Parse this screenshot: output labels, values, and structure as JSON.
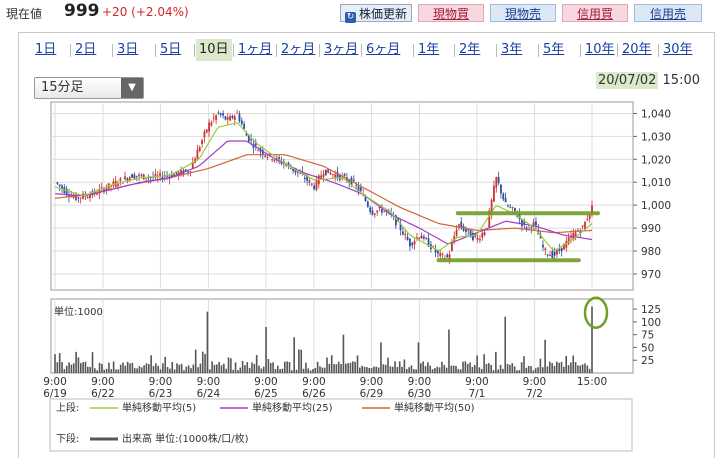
{
  "header": {
    "label": "現在値",
    "price": "999",
    "change": "+20 (+2.04%)",
    "buttons": [
      {
        "label": "株価更新",
        "style": "refresh",
        "x": 340,
        "w": 72
      },
      {
        "label": "現物買",
        "style": "pink",
        "x": 418,
        "w": 66
      },
      {
        "label": "現物売",
        "style": "blue",
        "x": 490,
        "w": 66
      },
      {
        "label": "信用買",
        "style": "pink",
        "x": 562,
        "w": 66
      },
      {
        "label": "信用売",
        "style": "blue",
        "x": 634,
        "w": 68
      }
    ]
  },
  "tabs": [
    {
      "label": "1日"
    },
    {
      "label": "2日"
    },
    {
      "label": "3日"
    },
    {
      "label": "5日"
    },
    {
      "label": "10日",
      "active": true
    },
    {
      "label": "1ヶ月"
    },
    {
      "label": "2ヶ月"
    },
    {
      "label": "3ヶ月"
    },
    {
      "label": "6ヶ月"
    },
    {
      "label": "1年"
    },
    {
      "label": "2年"
    },
    {
      "label": "3年"
    },
    {
      "label": "5年"
    },
    {
      "label": "10年"
    },
    {
      "label": "20年"
    },
    {
      "label": "30年"
    }
  ],
  "interval_select": {
    "value": "15分足"
  },
  "datetime": {
    "date": "20/07/02",
    "time": "15:00"
  },
  "colors": {
    "ma5": "#9ccb3c",
    "ma25": "#a03cc8",
    "ma50": "#d4633c",
    "up": "#d03030",
    "down": "#2a4fa0",
    "volume": "#555555",
    "annotation": "#6f9e2a"
  },
  "chart_data": [
    {
      "type": "candlestick",
      "name": "price",
      "ylim": [
        963,
        1045
      ],
      "yticks": [
        970,
        980,
        990,
        1000,
        1010,
        1020,
        1030,
        1040
      ],
      "x_ticks": [
        {
          "time": "9:00",
          "date": "6/19"
        },
        {
          "time": "9:00",
          "date": "6/22"
        },
        {
          "time": "9:00",
          "date": "6/23"
        },
        {
          "time": "9:00",
          "date": "6/24"
        },
        {
          "time": "9:00",
          "date": "6/25"
        },
        {
          "time": "9:00",
          "date": "6/26"
        },
        {
          "time": "9:00",
          "date": "6/29"
        },
        {
          "time": "9:00",
          "date": "6/30"
        },
        {
          "time": "9:00",
          "date": "7/1"
        },
        {
          "time": "9:00",
          "date": "7/2"
        },
        {
          "time": "15:00",
          "date": ""
        }
      ],
      "path_keypoints": [
        [
          0,
          1010
        ],
        [
          2,
          1003
        ],
        [
          4,
          1005
        ],
        [
          6,
          1009
        ],
        [
          8,
          1013
        ],
        [
          10,
          1012
        ],
        [
          12,
          1013
        ],
        [
          14,
          1015
        ],
        [
          16,
          1035
        ],
        [
          17,
          1040
        ],
        [
          18,
          1037
        ],
        [
          19,
          1040
        ],
        [
          20,
          1030
        ],
        [
          21,
          1025
        ],
        [
          22,
          1022
        ],
        [
          24,
          1018
        ],
        [
          26,
          1012
        ],
        [
          27,
          1008
        ],
        [
          28,
          1015
        ],
        [
          30,
          1012
        ],
        [
          31,
          1010
        ],
        [
          32,
          1005
        ],
        [
          33,
          997
        ],
        [
          34,
          998
        ],
        [
          35,
          996
        ],
        [
          36,
          990
        ],
        [
          37,
          983
        ],
        [
          38,
          987
        ],
        [
          39,
          983
        ],
        [
          40,
          978
        ],
        [
          41,
          977
        ],
        [
          42,
          992
        ],
        [
          43,
          988
        ],
        [
          44,
          985
        ],
        [
          45,
          990
        ],
        [
          46,
          1012
        ],
        [
          47,
          1000
        ],
        [
          48,
          997
        ],
        [
          49,
          990
        ],
        [
          50,
          992
        ],
        [
          51,
          980
        ],
        [
          52,
          978
        ],
        [
          53,
          982
        ],
        [
          54,
          987
        ],
        [
          55,
          990
        ],
        [
          56,
          999
        ]
      ],
      "ma_keypoints": {
        "ma5": [
          [
            0,
            1008
          ],
          [
            3,
            1004
          ],
          [
            6,
            1009
          ],
          [
            9,
            1012
          ],
          [
            12,
            1013
          ],
          [
            15,
            1020
          ],
          [
            17,
            1034
          ],
          [
            19,
            1036
          ],
          [
            21,
            1027
          ],
          [
            24,
            1018
          ],
          [
            27,
            1011
          ],
          [
            30,
            1012
          ],
          [
            32,
            1005
          ],
          [
            35,
            997
          ],
          [
            37,
            987
          ],
          [
            40,
            980
          ],
          [
            42,
            986
          ],
          [
            44,
            987
          ],
          [
            46,
            1000
          ],
          [
            48,
            996
          ],
          [
            50,
            990
          ],
          [
            52,
            980
          ],
          [
            54,
            985
          ],
          [
            56,
            992
          ]
        ],
        "ma25": [
          [
            0,
            1005
          ],
          [
            3,
            1004
          ],
          [
            6,
            1007
          ],
          [
            9,
            1010
          ],
          [
            12,
            1012
          ],
          [
            15,
            1017
          ],
          [
            18,
            1028
          ],
          [
            20,
            1028
          ],
          [
            23,
            1020
          ],
          [
            26,
            1014
          ],
          [
            29,
            1010
          ],
          [
            32,
            1005
          ],
          [
            35,
            996
          ],
          [
            38,
            990
          ],
          [
            41,
            983
          ],
          [
            44,
            988
          ],
          [
            47,
            993
          ],
          [
            50,
            991
          ],
          [
            53,
            987
          ],
          [
            56,
            985
          ]
        ],
        "ma50": [
          [
            0,
            1003
          ],
          [
            4,
            1005
          ],
          [
            8,
            1009
          ],
          [
            12,
            1012
          ],
          [
            16,
            1016
          ],
          [
            20,
            1022
          ],
          [
            24,
            1022
          ],
          [
            28,
            1017
          ],
          [
            32,
            1008
          ],
          [
            36,
            999
          ],
          [
            40,
            992
          ],
          [
            44,
            989
          ],
          [
            48,
            990
          ],
          [
            52,
            988
          ],
          [
            56,
            989
          ]
        ]
      },
      "support_lines": [
        {
          "from": [
            42,
            996.5
          ],
          "to": [
            56,
            996.5
          ]
        },
        {
          "from": [
            40,
            976
          ],
          "to": [
            54,
            976
          ]
        }
      ]
    },
    {
      "type": "bar",
      "name": "volume",
      "unit_label": "単位:1000",
      "ylim": [
        0,
        135
      ],
      "yticks": [
        25,
        50,
        75,
        100,
        125
      ],
      "spikes": [
        [
          16,
          120
        ],
        [
          22,
          90
        ],
        [
          25,
          70
        ],
        [
          30,
          75
        ],
        [
          34,
          60
        ],
        [
          38,
          60
        ],
        [
          41,
          85
        ],
        [
          47,
          110
        ],
        [
          51,
          65
        ],
        [
          56,
          130
        ]
      ]
    }
  ],
  "legend": {
    "upper_label": "上段:",
    "lower_label": "下段:",
    "ma5": "単純移動平均(5)",
    "ma25": "単純移動平均(25)",
    "ma50": "単純移動平均(50)",
    "volume": "出来高 単位:(1000株/口/枚)"
  }
}
